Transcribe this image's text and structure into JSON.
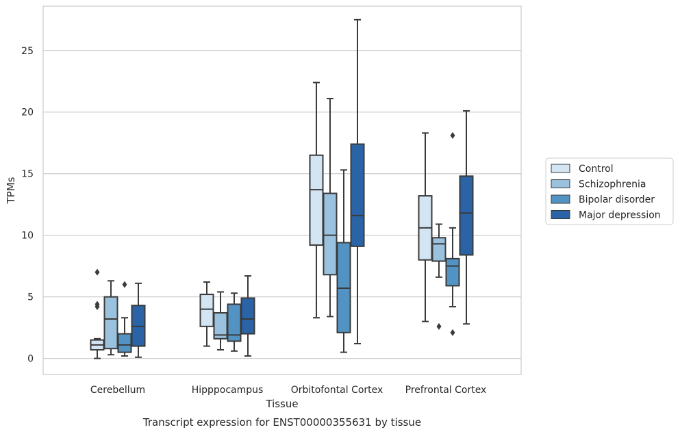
{
  "caption": "Transcript expression for ENST00000355631 by tissue",
  "chart_data": {
    "type": "box",
    "xlabel": "Tissue",
    "ylabel": "TPMs",
    "ylim": [
      -1.3,
      28.6
    ],
    "yticks": [
      0,
      5,
      10,
      15,
      20,
      25
    ],
    "grid": "horizontal",
    "legend_placement": "right",
    "categories": [
      "Cerebellum",
      "Hipppocampus",
      "Orbitofontal Cortex",
      "Prefrontal Cortex"
    ],
    "series": [
      {
        "name": "Control",
        "color": "#d3e4f3",
        "boxes": [
          {
            "min": 0.0,
            "q1": 0.7,
            "median": 1.1,
            "q3": 1.5,
            "max": 1.6,
            "outliers": [
              4.2,
              4.4,
              7.0
            ]
          },
          {
            "min": 1.0,
            "q1": 2.6,
            "median": 4.0,
            "q3": 5.2,
            "max": 6.2,
            "outliers": []
          },
          {
            "min": 3.3,
            "q1": 9.2,
            "median": 13.7,
            "q3": 16.5,
            "max": 22.4,
            "outliers": []
          },
          {
            "min": 3.0,
            "q1": 8.0,
            "median": 10.6,
            "q3": 13.2,
            "max": 18.3,
            "outliers": []
          }
        ]
      },
      {
        "name": "Schizophrenia",
        "color": "#9ac2de",
        "boxes": [
          {
            "min": 0.3,
            "q1": 0.8,
            "median": 3.2,
            "q3": 5.0,
            "max": 6.3,
            "outliers": []
          },
          {
            "min": 0.7,
            "q1": 1.6,
            "median": 1.9,
            "q3": 3.7,
            "max": 5.4,
            "outliers": []
          },
          {
            "min": 3.4,
            "q1": 6.8,
            "median": 10.0,
            "q3": 13.4,
            "max": 21.1,
            "outliers": []
          },
          {
            "min": 6.6,
            "q1": 7.9,
            "median": 9.3,
            "q3": 9.8,
            "max": 10.9,
            "outliers": [
              2.6
            ]
          }
        ]
      },
      {
        "name": "Bipolar disorder",
        "color": "#5393c3",
        "boxes": [
          {
            "min": 0.2,
            "q1": 0.5,
            "median": 1.1,
            "q3": 2.0,
            "max": 3.3,
            "outliers": [
              6.0
            ]
          },
          {
            "min": 0.6,
            "q1": 1.4,
            "median": 1.9,
            "q3": 4.4,
            "max": 5.3,
            "outliers": []
          },
          {
            "min": 0.5,
            "q1": 2.1,
            "median": 5.7,
            "q3": 9.4,
            "max": 15.3,
            "outliers": []
          },
          {
            "min": 4.2,
            "q1": 5.9,
            "median": 7.5,
            "q3": 8.1,
            "max": 10.6,
            "outliers": [
              2.1,
              18.1
            ]
          }
        ]
      },
      {
        "name": "Major depression",
        "color": "#2a64a6",
        "boxes": [
          {
            "min": 0.1,
            "q1": 1.0,
            "median": 2.6,
            "q3": 4.3,
            "max": 6.1,
            "outliers": []
          },
          {
            "min": 0.2,
            "q1": 2.0,
            "median": 3.2,
            "q3": 4.9,
            "max": 6.7,
            "outliers": []
          },
          {
            "min": 1.2,
            "q1": 9.1,
            "median": 11.6,
            "q3": 17.4,
            "max": 27.5,
            "outliers": []
          },
          {
            "min": 2.8,
            "q1": 8.4,
            "median": 11.8,
            "q3": 14.8,
            "max": 20.1,
            "outliers": []
          }
        ]
      }
    ]
  }
}
